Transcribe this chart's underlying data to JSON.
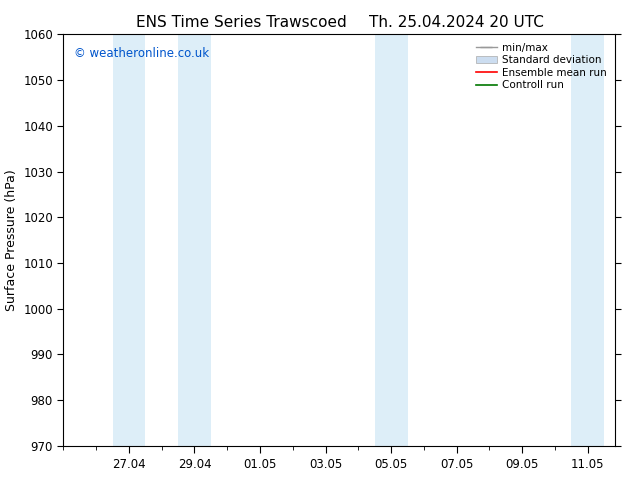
{
  "title_left": "ENS Time Series Trawscoed",
  "title_right": "Th. 25.04.2024 20 UTC",
  "ylabel": "Surface Pressure (hPa)",
  "ylim": [
    970,
    1060
  ],
  "yticks": [
    970,
    980,
    990,
    1000,
    1010,
    1020,
    1030,
    1040,
    1050,
    1060
  ],
  "xtick_labels": [
    "27.04",
    "29.04",
    "01.05",
    "03.05",
    "05.05",
    "07.05",
    "09.05",
    "11.05"
  ],
  "watermark": "© weatheronline.co.uk",
  "watermark_color": "#0055cc",
  "background_color": "#ffffff",
  "plot_bg_color": "#ffffff",
  "shaded_band_color": "#ddeef8",
  "title_fontsize": 11,
  "axis_label_fontsize": 9,
  "tick_fontsize": 8.5,
  "legend_fontsize": 7.5,
  "shaded_ranges": [
    [
      1.5,
      2.5
    ],
    [
      3.5,
      4.5
    ],
    [
      9.5,
      10.5
    ],
    [
      15.5,
      16.5
    ]
  ],
  "xtick_positions": [
    2,
    4,
    6,
    8,
    10,
    12,
    14,
    16
  ],
  "xlim": [
    0.0,
    16.83
  ],
  "legend_labels": [
    "min/max",
    "Standard deviation",
    "Ensemble mean run",
    "Controll run"
  ],
  "legend_colors": [
    "#aaaaaa",
    "#ccddf0",
    "#ff0000",
    "#00aa00"
  ]
}
